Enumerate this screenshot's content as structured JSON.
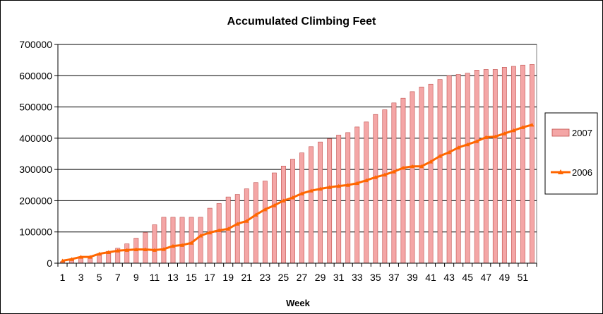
{
  "chart_data": {
    "type": "bar",
    "title": "Accumulated Climbing Feet",
    "xlabel": "Week",
    "ylabel": "",
    "ylim": [
      0,
      700000
    ],
    "yticks": [
      0,
      100000,
      200000,
      300000,
      400000,
      500000,
      600000,
      700000
    ],
    "ytick_labels": [
      "0",
      "100000",
      "200000",
      "300000",
      "400000",
      "500000",
      "600000",
      "700000"
    ],
    "x": [
      1,
      2,
      3,
      4,
      5,
      6,
      7,
      8,
      9,
      10,
      11,
      12,
      13,
      14,
      15,
      16,
      17,
      18,
      19,
      20,
      21,
      22,
      23,
      24,
      25,
      26,
      27,
      28,
      29,
      30,
      31,
      32,
      33,
      34,
      35,
      36,
      37,
      38,
      39,
      40,
      41,
      42,
      43,
      44,
      45,
      46,
      47,
      48,
      49,
      50,
      51,
      52
    ],
    "xtick_labels": [
      "1",
      "3",
      "5",
      "7",
      "9",
      "11",
      "13",
      "15",
      "17",
      "19",
      "21",
      "23",
      "25",
      "27",
      "29",
      "31",
      "33",
      "35",
      "37",
      "39",
      "41",
      "43",
      "45",
      "47",
      "49",
      "51"
    ],
    "grid": "horizontal",
    "legend_position": "right",
    "series": [
      {
        "name": "2007",
        "kind": "bar",
        "color": "#f4a6a6",
        "edge_color": "#c0504d",
        "values": [
          5000,
          12000,
          18000,
          22000,
          30000,
          38000,
          48000,
          62000,
          80000,
          98000,
          123000,
          147000,
          147000,
          147000,
          147000,
          147000,
          176000,
          191000,
          212000,
          220000,
          238000,
          258000,
          263000,
          289000,
          311000,
          333000,
          353000,
          373000,
          388000,
          398000,
          410000,
          418000,
          436000,
          452000,
          476000,
          491000,
          513000,
          528000,
          549000,
          564000,
          573000,
          588000,
          600000,
          604000,
          608000,
          618000,
          620000,
          620000,
          627000,
          630000,
          634000,
          636000
        ]
      },
      {
        "name": "2006",
        "kind": "line",
        "color": "#ff6600",
        "values": [
          8000,
          13000,
          20000,
          20000,
          30000,
          35000,
          40000,
          42000,
          44000,
          44000,
          42000,
          45000,
          55000,
          58000,
          65000,
          88000,
          98000,
          105000,
          110000,
          126000,
          135000,
          155000,
          172000,
          185000,
          200000,
          210000,
          223000,
          232000,
          238000,
          243000,
          247000,
          250000,
          256000,
          265000,
          275000,
          283000,
          293000,
          305000,
          310000,
          310000,
          325000,
          343000,
          355000,
          370000,
          380000,
          390000,
          403000,
          405000,
          415000,
          425000,
          435000,
          443000
        ]
      }
    ]
  }
}
